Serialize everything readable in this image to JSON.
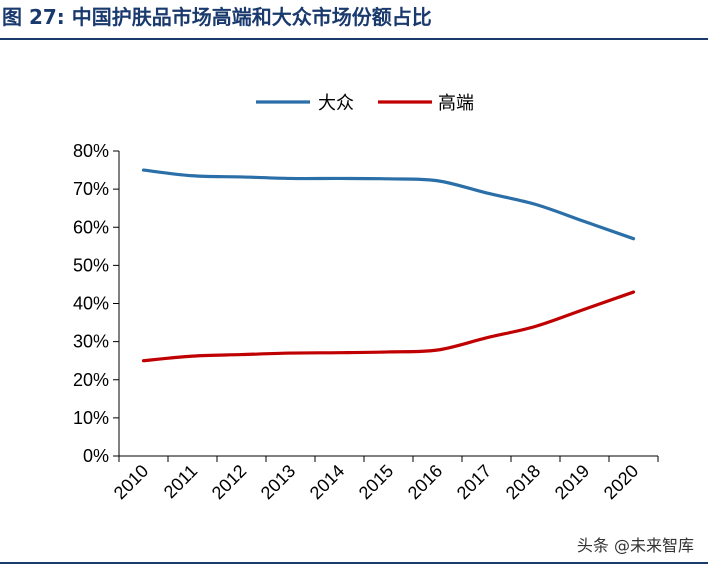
{
  "figure": {
    "prefix": "图",
    "number": "27:",
    "title": "中国护肤品市场高端和大众市场份额占比"
  },
  "watermark": "头条 @未来智库",
  "colors": {
    "mass": "#2a6fa8",
    "premium": "#c00000",
    "title": "#1a3a6e"
  },
  "chart_data": {
    "type": "line",
    "x": [
      "2010",
      "2011",
      "2012",
      "2013",
      "2014",
      "2015",
      "2016",
      "2017",
      "2018",
      "2019",
      "2020"
    ],
    "series": [
      {
        "name": "大众",
        "values": [
          75,
          73.5,
          73.2,
          72.8,
          72.8,
          72.7,
          72.2,
          69,
          66,
          61.5,
          57
        ]
      },
      {
        "name": "高端",
        "values": [
          25,
          26.2,
          26.6,
          27,
          27.1,
          27.3,
          27.8,
          31,
          34,
          38.5,
          43
        ]
      }
    ],
    "y_ticks": [
      "0%",
      "10%",
      "20%",
      "30%",
      "40%",
      "50%",
      "60%",
      "70%",
      "80%"
    ],
    "ylim": [
      0,
      80
    ],
    "legend_position": "top-center",
    "grid": false
  }
}
